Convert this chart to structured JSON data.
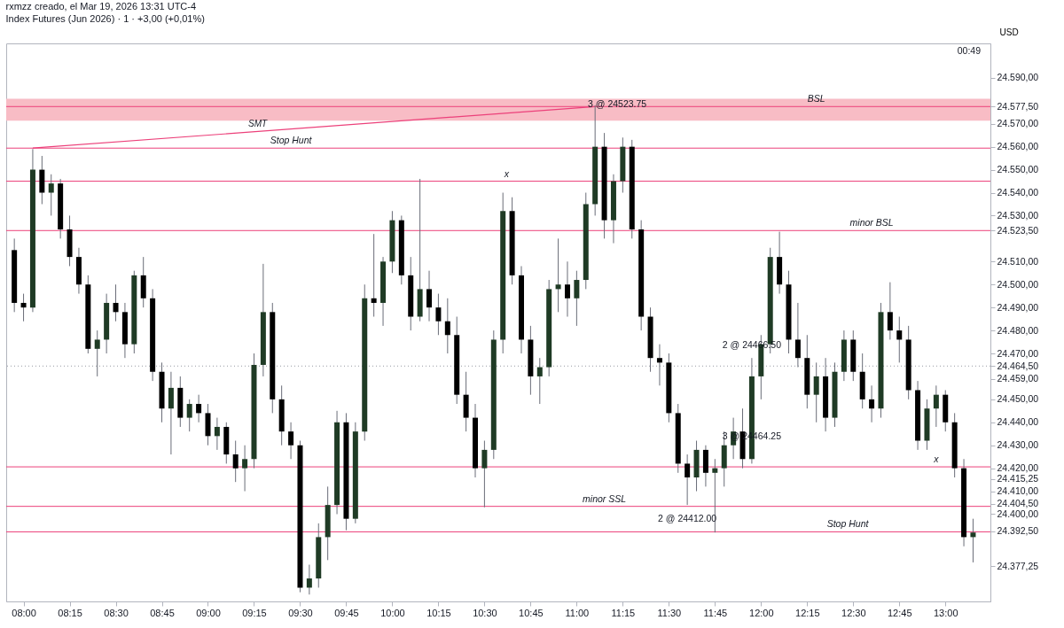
{
  "chart_data": {
    "type": "candlestick",
    "title": "rxmzz creado, el Mar 19, 2026 13:31 UTC-4",
    "subtitle": "Index Futures (Jun 2026) · 1 · +3,00 (+0,01%)",
    "ylabel": "USD",
    "grid": false,
    "xlim": [
      7.93,
      13.22
    ],
    "xticks": [
      {
        "value": 8,
        "label": "08:00"
      },
      {
        "value": 8.25,
        "label": "08:15"
      },
      {
        "value": 8.5,
        "label": "08:30"
      },
      {
        "value": 8.75,
        "label": "08:45"
      },
      {
        "value": 9,
        "label": "09:00"
      },
      {
        "value": 9.25,
        "label": "09:15"
      },
      {
        "value": 9.5,
        "label": "09:30"
      },
      {
        "value": 9.75,
        "label": "09:45"
      },
      {
        "value": 10,
        "label": "10:00"
      },
      {
        "value": 10.25,
        "label": "10:15"
      },
      {
        "value": 10.5,
        "label": "10:30"
      },
      {
        "value": 10.75,
        "label": "10:45"
      },
      {
        "value": 11,
        "label": "11:00"
      },
      {
        "value": 11.25,
        "label": "11:15"
      },
      {
        "value": 11.5,
        "label": "11:30"
      },
      {
        "value": 11.75,
        "label": "11:45"
      },
      {
        "value": 12,
        "label": "12:00"
      },
      {
        "value": 12.25,
        "label": "12:15"
      },
      {
        "value": 12.5,
        "label": "12:30"
      },
      {
        "value": 12.75,
        "label": "12:45"
      },
      {
        "value": 13,
        "label": "13:00"
      }
    ],
    "ylim": [
      24362,
      24605
    ],
    "yticks": [
      {
        "value": 24590,
        "label": "24.590,00"
      },
      {
        "value": 24577.5,
        "label": "24.577,50"
      },
      {
        "value": 24570,
        "label": "24.570,00"
      },
      {
        "value": 24560,
        "label": "24.560,00"
      },
      {
        "value": 24550,
        "label": "24.550,00"
      },
      {
        "value": 24540,
        "label": "24.540,00"
      },
      {
        "value": 24530,
        "label": "24.530,00"
      },
      {
        "value": 24523.5,
        "label": "24.523,50"
      },
      {
        "value": 24510,
        "label": "24.510,00"
      },
      {
        "value": 24500,
        "label": "24.500,00"
      },
      {
        "value": 24490,
        "label": "24.490,00"
      },
      {
        "value": 24480,
        "label": "24.480,00"
      },
      {
        "value": 24470,
        "label": "24.470,00"
      },
      {
        "value": 24464.5,
        "label": "24.464,50"
      },
      {
        "value": 24459,
        "label": "24.459,00"
      },
      {
        "value": 24450,
        "label": "24.450,00"
      },
      {
        "value": 24440,
        "label": "24.440,00"
      },
      {
        "value": 24430,
        "label": "24.430,00"
      },
      {
        "value": 24420,
        "label": "24.420,00"
      },
      {
        "value": 24415.25,
        "label": "24.415,25"
      },
      {
        "value": 24410,
        "label": "24.410,00"
      },
      {
        "value": 24404.5,
        "label": "24.404,50"
      },
      {
        "value": 24400,
        "label": "24.400,00"
      },
      {
        "value": 24392.5,
        "label": "24.392,50"
      },
      {
        "value": 24377.25,
        "label": "24.377,25"
      }
    ],
    "bands": [
      {
        "axis": "y",
        "from": 24571.3,
        "to": 24580.9,
        "color": "#f8bcc5"
      }
    ],
    "ref_lines": [
      {
        "axis": "y",
        "value": 24577.5,
        "color": "#ec407a"
      },
      {
        "axis": "y",
        "value": 24559.4,
        "color": "#ec407a"
      },
      {
        "axis": "y",
        "value": 24545,
        "color": "#ec407a"
      },
      {
        "axis": "y",
        "value": 24523.5,
        "color": "#ec407a"
      },
      {
        "axis": "y",
        "value": 24464.5,
        "color": "#9598a1",
        "line_style": "dotted"
      },
      {
        "axis": "y",
        "value": 24420.6,
        "color": "#ec407a"
      },
      {
        "axis": "y",
        "value": 24403.4,
        "color": "#ec407a"
      },
      {
        "axis": "y",
        "value": 24392.3,
        "color": "#ec407a"
      }
    ],
    "annotations": [
      {
        "text": "BSL",
        "x": 12.3,
        "y": 24577.5
      },
      {
        "text": "Stop Hunt",
        "x": 9.45,
        "y": 24559.4
      },
      {
        "text": "x",
        "x": 10.62,
        "y": 24545
      },
      {
        "text": "minor BSL",
        "x": 12.6,
        "y": 24523.5
      },
      {
        "text": "x",
        "x": 12.95,
        "y": 24420.6
      },
      {
        "text": "minor SSL",
        "x": 11.15,
        "y": 24403.4
      },
      {
        "text": "Stop Hunt",
        "x": 12.47,
        "y": 24392.3
      },
      {
        "text": "3 @ 24523.75",
        "x": 11.22,
        "y": 24573
      },
      {
        "text": "2 @ 24466.50",
        "x": 11.95,
        "y": 24468
      },
      {
        "text": "3 @ 24464.25",
        "x": 11.95,
        "y": 24440
      },
      {
        "text": "2 @ 24412.00",
        "x": 11.6,
        "y": 24404
      },
      "00:49"
    ],
    "series": [
      {
        "type": "line",
        "name": "SMT",
        "color": "#ec407a",
        "x": [
          8.05,
          11.1
        ],
        "values": [
          24559.4,
          24577.5
        ]
      },
      {
        "type": "candlestick",
        "colors": [
          "#000000",
          "#000000",
          "#1f3b25",
          "#000000",
          "#1f3b25",
          "#000000",
          "#000000",
          "#000000",
          "#000000",
          "#1f3b25",
          "#1f3b25",
          "#000000",
          "#000000",
          "#1f3b25",
          "#000000",
          "#000000",
          "#000000",
          "#1f3b25",
          "#000000",
          "#1f3b25",
          "#000000",
          "#000000",
          "#1f3b25",
          "#000000",
          "#000000",
          "#1f3b25",
          "#1f3b25",
          "#1f3b25",
          "#000000",
          "#000000",
          "#000000",
          "#000000",
          "#1f3b25",
          "#1f3b25",
          "#1f3b25",
          "#1f3b25",
          "#000000",
          "#1f3b25",
          "#1f3b25",
          "#000000",
          "#1f3b25",
          "#1f3b25",
          "#000000",
          "#000000",
          "#1f3b25",
          "#000000",
          "#000000",
          "#000000",
          "#000000",
          "#000000",
          "#000000",
          "#1f3b25",
          "#1f3b25",
          "#1f3b25",
          "#000000",
          "#000000",
          "#000000",
          "#1f3b25",
          "#1f3b25",
          "#1f3b25",
          "#000000",
          "#1f3b25",
          "#1f3b25",
          "#1f3b25",
          "#000000",
          "#1f3b25",
          "#1f3b25",
          "#000000",
          "#000000",
          "#000000",
          "#000000",
          "#000000",
          "#000000",
          "#000000",
          "#1f3b25",
          "#000000",
          "#1f3b25",
          "#1f3b25",
          "#1f3b25",
          "#000000",
          "#1f3b25",
          "#1f3b25",
          "#1f3b25",
          "#000000",
          "#000000",
          "#000000",
          "#000000",
          "#1f3b25",
          "#000000",
          "#1f3b25",
          "#1f3b25",
          "#000000",
          "#000000",
          "#000000",
          "#1f3b25",
          "#000000",
          "#000000",
          "#000000",
          "#000000",
          "#1f3b25",
          "#1f3b25",
          "#000000",
          "#000000",
          "#000000",
          "#1f3b25"
        ],
        "x": [
          7.95,
          8,
          8.05,
          8.1,
          8.15,
          8.2,
          8.25,
          8.3,
          8.35,
          8.4,
          8.45,
          8.5,
          8.55,
          8.6,
          8.65,
          8.7,
          8.75,
          8.8,
          8.85,
          8.9,
          8.95,
          9,
          9.05,
          9.1,
          9.15,
          9.2,
          9.25,
          9.3,
          9.35,
          9.4,
          9.45,
          9.5,
          9.55,
          9.6,
          9.65,
          9.7,
          9.75,
          9.8,
          9.85,
          9.9,
          9.95,
          10,
          10.05,
          10.1,
          10.15,
          10.2,
          10.25,
          10.3,
          10.35,
          10.4,
          10.45,
          10.5,
          10.55,
          10.6,
          10.65,
          10.7,
          10.75,
          10.8,
          10.85,
          10.9,
          10.95,
          11,
          11.05,
          11.1,
          11.15,
          11.2,
          11.25,
          11.3,
          11.35,
          11.4,
          11.45,
          11.5,
          11.55,
          11.6,
          11.65,
          11.7,
          11.75,
          11.8,
          11.85,
          11.9,
          11.95,
          12,
          12.05,
          12.1,
          12.15,
          12.2,
          12.25,
          12.3,
          12.35,
          12.4,
          12.45,
          12.5,
          12.55,
          12.6,
          12.65,
          12.7,
          12.75,
          12.8,
          12.85,
          12.9,
          12.95,
          13,
          13.05,
          13.1,
          13.15
        ],
        "ohlc": [
          [
            24515,
            24520,
            24488,
            24492
          ],
          [
            24492,
            24496,
            24484,
            24490
          ],
          [
            24490,
            24559,
            24488,
            24550
          ],
          [
            24550,
            24556,
            24535,
            24540
          ],
          [
            24540,
            24548,
            24530,
            24544
          ],
          [
            24544,
            24546,
            24520,
            24524
          ],
          [
            24524,
            24530,
            24508,
            24512
          ],
          [
            24512,
            24516,
            24496,
            24500
          ],
          [
            24500,
            24504,
            24470,
            24472
          ],
          [
            24472,
            24480,
            24460,
            24476
          ],
          [
            24476,
            24496,
            24470,
            24492
          ],
          [
            24492,
            24500,
            24484,
            24488
          ],
          [
            24488,
            24492,
            24468,
            24474
          ],
          [
            24474,
            24506,
            24470,
            24504
          ],
          [
            24504,
            24512,
            24490,
            24494
          ],
          [
            24494,
            24498,
            24458,
            24462
          ],
          [
            24462,
            24466,
            24440,
            24446
          ],
          [
            24446,
            24462,
            24426,
            24455
          ],
          [
            24455,
            24460,
            24438,
            24442
          ],
          [
            24442,
            24450,
            24436,
            24448
          ],
          [
            24448,
            24452,
            24440,
            24444
          ],
          [
            24444,
            24448,
            24430,
            24434
          ],
          [
            24434,
            24442,
            24428,
            24438
          ],
          [
            24438,
            24440,
            24422,
            24426
          ],
          [
            24426,
            24432,
            24414,
            24420
          ],
          [
            24420,
            24430,
            24410,
            24424
          ],
          [
            24424,
            24470,
            24420,
            24465
          ],
          [
            24465,
            24509,
            24460,
            24488
          ],
          [
            24488,
            24492,
            24444,
            24450
          ],
          [
            24450,
            24456,
            24430,
            24436
          ],
          [
            24436,
            24440,
            24424,
            24430
          ],
          [
            24430,
            24432,
            24366,
            24368
          ],
          [
            24368,
            24378,
            24365,
            24372
          ],
          [
            24372,
            24396,
            24368,
            24390
          ],
          [
            24390,
            24412,
            24380,
            24404
          ],
          [
            24404,
            24445,
            24400,
            24440
          ],
          [
            24440,
            24444,
            24393,
            24398
          ],
          [
            24398,
            24440,
            24396,
            24436
          ],
          [
            24436,
            24500,
            24432,
            24494
          ],
          [
            24494,
            24522,
            24486,
            24492
          ],
          [
            24492,
            24512,
            24482,
            24510
          ],
          [
            24510,
            24532,
            24505,
            24528
          ],
          [
            24528,
            24530,
            24500,
            24504
          ],
          [
            24504,
            24512,
            24480,
            24486
          ],
          [
            24486,
            24546,
            24484,
            24498
          ],
          [
            24498,
            24506,
            24484,
            24490
          ],
          [
            24490,
            24496,
            24478,
            24484
          ],
          [
            24484,
            24494,
            24470,
            24478
          ],
          [
            24478,
            24486,
            24448,
            24452
          ],
          [
            24452,
            24462,
            24436,
            24442
          ],
          [
            24442,
            24448,
            24416,
            24420
          ],
          [
            24420,
            24432,
            24403,
            24428
          ],
          [
            24428,
            24480,
            24424,
            24476
          ],
          [
            24476,
            24540,
            24470,
            24532
          ],
          [
            24532,
            24538,
            24500,
            24504
          ],
          [
            24504,
            24508,
            24470,
            24476
          ],
          [
            24476,
            24482,
            24452,
            24460
          ],
          [
            24460,
            24468,
            24448,
            24464
          ],
          [
            24464,
            24502,
            24460,
            24498
          ],
          [
            24498,
            24520,
            24488,
            24500
          ],
          [
            24500,
            24510,
            24486,
            24494
          ],
          [
            24494,
            24506,
            24482,
            24502
          ],
          [
            24502,
            24540,
            24498,
            24535
          ],
          [
            24535,
            24578,
            24530,
            24560
          ],
          [
            24560,
            24566,
            24520,
            24528
          ],
          [
            24528,
            24548,
            24518,
            24545
          ],
          [
            24545,
            24564,
            24540,
            24560
          ],
          [
            24560,
            24563,
            24520,
            24524
          ],
          [
            24524,
            24528,
            24480,
            24486
          ],
          [
            24486,
            24490,
            24462,
            24468
          ],
          [
            24468,
            24474,
            24456,
            24466
          ],
          [
            24466,
            24470,
            24440,
            24444
          ],
          [
            24444,
            24448,
            24418,
            24422
          ],
          [
            24422,
            24426,
            24404,
            24416
          ],
          [
            24416,
            24432,
            24410,
            24428
          ],
          [
            24428,
            24430,
            24412,
            24418
          ],
          [
            24418,
            24424,
            24392,
            24420
          ],
          [
            24420,
            24436,
            24412,
            24430
          ],
          [
            24430,
            24442,
            24424,
            24436
          ],
          [
            24436,
            24446,
            24420,
            24424
          ],
          [
            24424,
            24468,
            24422,
            24460
          ],
          [
            24460,
            24478,
            24450,
            24474
          ],
          [
            24474,
            24516,
            24470,
            24512
          ],
          [
            24512,
            24523,
            24496,
            24500
          ],
          [
            24500,
            24506,
            24470,
            24476
          ],
          [
            24476,
            24492,
            24464,
            24468
          ],
          [
            24468,
            24478,
            24446,
            24452
          ],
          [
            24452,
            24466,
            24440,
            24460
          ],
          [
            24460,
            24468,
            24436,
            24442
          ],
          [
            24442,
            24466,
            24438,
            24462
          ],
          [
            24462,
            24480,
            24458,
            24476
          ],
          [
            24476,
            24480,
            24458,
            24462
          ],
          [
            24462,
            24470,
            24446,
            24450
          ],
          [
            24450,
            24456,
            24440,
            24446
          ],
          [
            24446,
            24492,
            24442,
            24488
          ],
          [
            24488,
            24501,
            24476,
            24480
          ],
          [
            24480,
            24486,
            24466,
            24476
          ],
          [
            24476,
            24482,
            24450,
            24454
          ],
          [
            24454,
            24458,
            24428,
            24432
          ],
          [
            24432,
            24450,
            24428,
            24446
          ],
          [
            24446,
            24456,
            24438,
            24452
          ],
          [
            24452,
            24454,
            24436,
            24440
          ],
          [
            24440,
            24444,
            24416,
            24420
          ],
          [
            24420,
            24424,
            24386,
            24390
          ],
          [
            24390,
            24398,
            24379,
            24392
          ]
        ]
      }
    ]
  }
}
